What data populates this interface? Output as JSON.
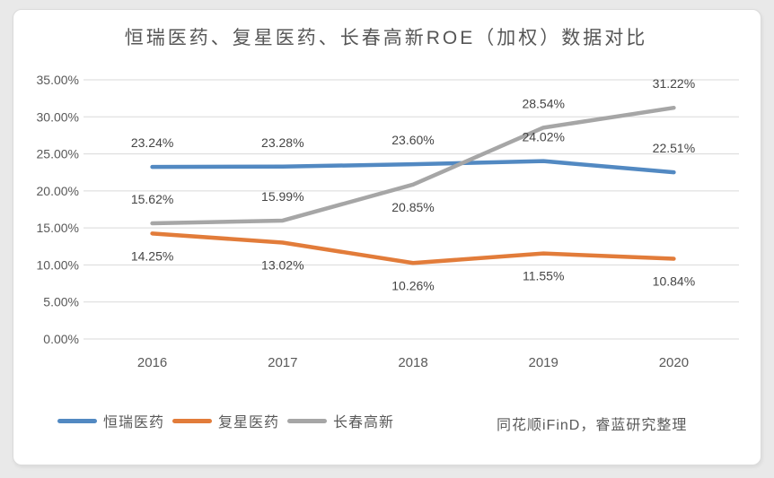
{
  "page": {
    "background_color": "#e9e9e9",
    "card_color": "#ffffff"
  },
  "source_note": "同花顺iFinD，睿蓝研究整理",
  "colors": {
    "gridline": "#d9d9d9",
    "axis_text": "#595959",
    "data_label_text": "#444444",
    "title_text": "#565656"
  },
  "chart_data": {
    "type": "line",
    "title": "恒瑞医药、复星医药、长春高新ROE（加权）数据对比",
    "categories": [
      "2016",
      "2017",
      "2018",
      "2019",
      "2020"
    ],
    "series": [
      {
        "id": "hengrui-pharma",
        "name": "恒瑞医药",
        "color": "#5289c2",
        "values": [
          23.24,
          23.28,
          23.6,
          24.02,
          22.51
        ],
        "point_labels": [
          "23.24%",
          "23.28%",
          "23.60%",
          "24.02%",
          "22.51%"
        ],
        "label_sides": [
          "above",
          "above",
          "above",
          "above",
          "above"
        ]
      },
      {
        "id": "fosun-pharma",
        "name": "复星医药",
        "color": "#e27c3a",
        "values": [
          14.25,
          13.02,
          10.26,
          11.55,
          10.84
        ],
        "point_labels": [
          "14.25%",
          "13.02%",
          "10.26%",
          "11.55%",
          "10.84%"
        ],
        "label_sides": [
          "below",
          "below",
          "below",
          "below",
          "below"
        ]
      },
      {
        "id": "changchun-hightech",
        "name": "长春高新",
        "color": "#a6a6a6",
        "values": [
          15.62,
          15.99,
          20.85,
          28.54,
          31.22
        ],
        "point_labels": [
          "15.62%",
          "15.99%",
          "20.85%",
          "28.54%",
          "31.22%"
        ],
        "label_sides": [
          "above",
          "above",
          "below",
          "above",
          "above"
        ]
      }
    ],
    "xlabel": "",
    "ylabel": "",
    "ylim": [
      0,
      35
    ],
    "y_ticks": [
      {
        "value": 35,
        "label": "35.00%"
      },
      {
        "value": 30,
        "label": "30.00%"
      },
      {
        "value": 25,
        "label": "25.00%"
      },
      {
        "value": 20,
        "label": "20.00%"
      },
      {
        "value": 15,
        "label": "15.00%"
      },
      {
        "value": 10,
        "label": "10.00%"
      },
      {
        "value": 5,
        "label": "5.00%"
      },
      {
        "value": 0,
        "label": "0.00%"
      }
    ],
    "grid": true,
    "legend_position": "bottom"
  }
}
